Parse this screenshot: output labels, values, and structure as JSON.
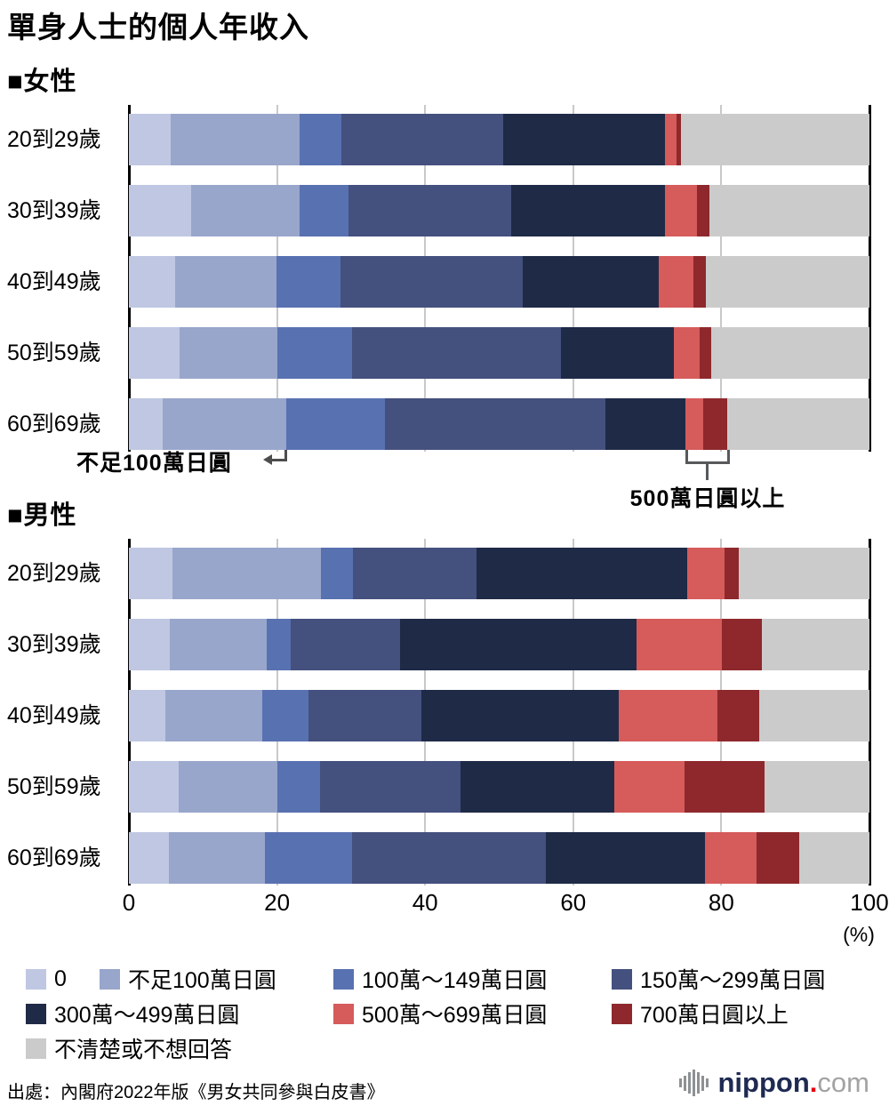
{
  "title": "單身人士的個人年收入",
  "annotations": {
    "under100": "不足100萬日圓",
    "over500": "500萬日圓以上"
  },
  "source": "出處：內閣府2022年版《男女共同參與白皮書》",
  "logo": {
    "icon": "soundwave-bars",
    "name": "nippon",
    "dot": ".",
    "tld": "com"
  },
  "chart_data": {
    "type": "bar",
    "stacked": true,
    "orientation": "horizontal",
    "unit": "%",
    "unit_label": "(%)",
    "xlim": [
      0,
      100
    ],
    "xticks": [
      0,
      20,
      40,
      60,
      80,
      100
    ],
    "grid": "vertical",
    "categories": [
      "20到29歲",
      "30到39歲",
      "40到49歲",
      "50到59歲",
      "60到69歲"
    ],
    "brackets": [
      {
        "label": "0",
        "color": "#bfc7e2"
      },
      {
        "label": "不足100萬日圓",
        "color": "#99a6cb"
      },
      {
        "label": "100萬～149萬日圓",
        "color": "#5871b1"
      },
      {
        "label": "150萬～299萬日圓",
        "color": "#44507e"
      },
      {
        "label": "300萬～499萬日圓",
        "color": "#1f2a47"
      },
      {
        "label": "500萬～699萬日圓",
        "color": "#d65b5b"
      },
      {
        "label": "700萬日圓以上",
        "color": "#8e282c"
      },
      {
        "label": "不清楚或不想回答",
        "color": "#cbcbcb"
      }
    ],
    "groups": [
      {
        "key": "women",
        "label": "■女性",
        "rows": [
          {
            "age": "20到29歲",
            "values": [
              5.7,
              17.4,
              5.6,
              21.9,
              21.8,
              1.5,
              0.7,
              25.4
            ]
          },
          {
            "age": "30到39歲",
            "values": [
              8.4,
              14.6,
              6.7,
              21.9,
              20.8,
              4.3,
              1.7,
              21.6
            ]
          },
          {
            "age": "40到49歲",
            "values": [
              6.3,
              13.6,
              8.7,
              24.6,
              18.4,
              4.6,
              1.7,
              22.1
            ]
          },
          {
            "age": "50到59歲",
            "values": [
              6.8,
              13.3,
              10.0,
              28.3,
              15.2,
              3.5,
              1.5,
              21.4
            ]
          },
          {
            "age": "60到69歲",
            "values": [
              4.6,
              16.7,
              13.3,
              29.8,
              10.8,
              2.4,
              3.2,
              19.2
            ]
          }
        ]
      },
      {
        "key": "men",
        "label": "■男性",
        "rows": [
          {
            "age": "20到29歲",
            "values": [
              5.9,
              20.0,
              4.4,
              16.6,
              28.5,
              5.0,
              2.0,
              17.6
            ]
          },
          {
            "age": "30到39歲",
            "values": [
              5.5,
              13.1,
              3.2,
              14.8,
              31.9,
              11.6,
              5.4,
              14.5
            ]
          },
          {
            "age": "40到49歲",
            "values": [
              4.9,
              13.1,
              6.3,
              15.2,
              26.7,
              13.3,
              5.6,
              14.9
            ]
          },
          {
            "age": "50到59歲",
            "values": [
              6.7,
              13.3,
              5.8,
              19.0,
              20.7,
              9.5,
              10.8,
              14.2
            ]
          },
          {
            "age": "60到69歲",
            "values": [
              5.4,
              13.0,
              11.7,
              26.2,
              21.5,
              6.9,
              5.8,
              9.5
            ]
          }
        ]
      }
    ]
  }
}
